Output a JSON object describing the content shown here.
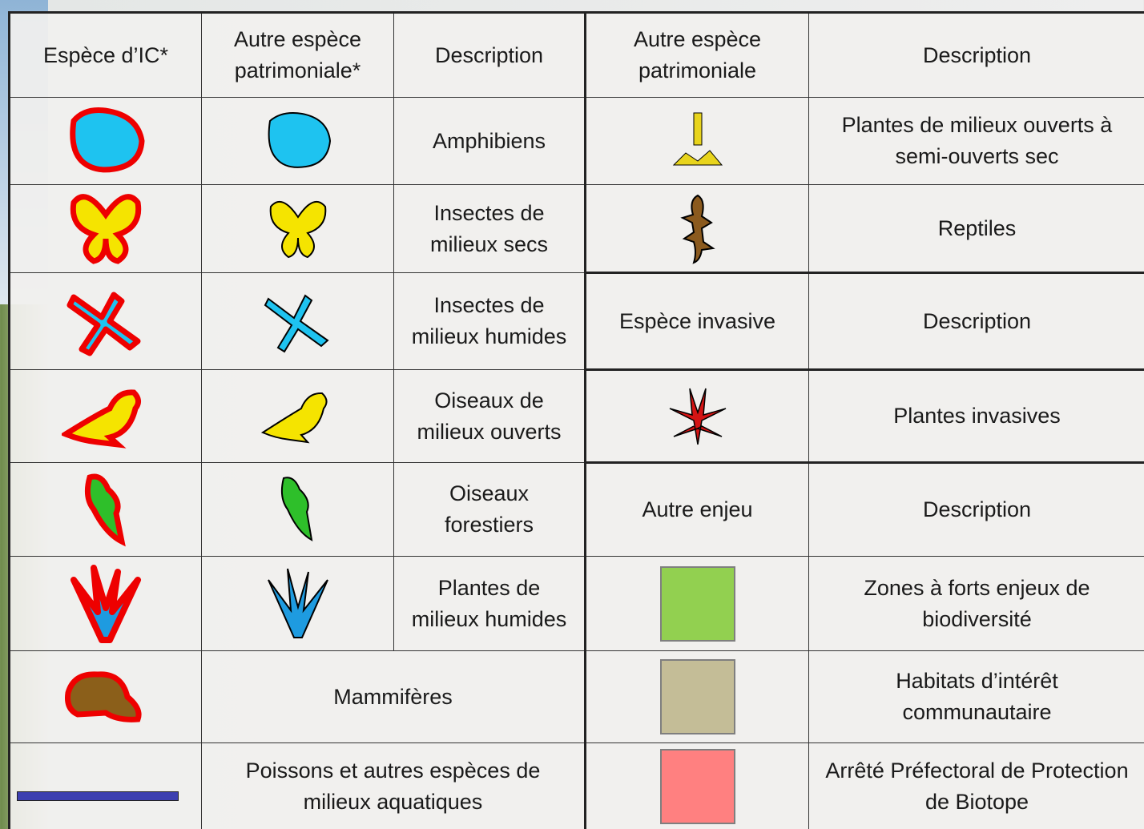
{
  "header": {
    "ic_species": "Espèce d’IC*",
    "other_species": "Autre espèce patrimoniale*",
    "description": "Description",
    "right_species": "Autre espèce patrimoniale",
    "right_description": "Description"
  },
  "animal_groups": [
    "Amphibiens",
    "Insectes de milieux secs",
    "Insectes de milieux humides",
    "Oiseaux de milieux ouverts",
    "Oiseaux forestiers",
    "Plantes de milieux humides",
    "Mammifères",
    "Poissons et autres espèces de milieux aquatiques"
  ],
  "right_species": [
    "Plantes de milieux ouverts à semi-ouverts sec",
    "Reptiles"
  ],
  "invasive_header": {
    "species": "Espèce invasive",
    "description": "Description"
  },
  "invasive": [
    "Plantes invasives"
  ],
  "other_header": {
    "issue": "Autre enjeu",
    "description": "Description"
  },
  "other_issues": [
    "Zones à forts enjeux de biodiversité",
    "Habitats d’intérêt communautaire",
    "Arrêté Préfectoral de Protection de Biotope"
  ]
}
